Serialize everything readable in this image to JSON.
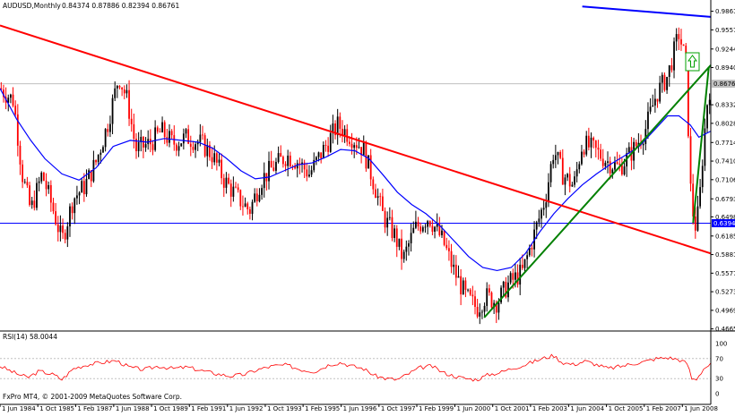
{
  "header": {
    "symbol": "AUDUSD,Monthly",
    "ohlc": "0.84374 0.87886 0.82394 0.86761"
  },
  "footer": {
    "copyright": "FxPro MT4, © 2001-2009 MetaQuotes Software Corp."
  },
  "colors": {
    "bull": "#000000",
    "bear": "#ff0000",
    "ma": "#0000ff",
    "trend_red": "#ff0000",
    "trend_green": "#008000",
    "trend_blue": "#0000ff",
    "horizontal": "#0000ff",
    "rsi": "#ff0000",
    "grid": "#c0c0c0",
    "arrow": "#00a000"
  },
  "chart_data": {
    "type": "candlestick",
    "price_axis": {
      "range": [
        0.466,
        0.987
      ],
      "ticks": [
        "0.98615",
        "0.95575",
        "0.92440",
        "0.89400",
        "0.83320",
        "0.80280",
        "0.77145",
        "0.74105",
        "0.71065",
        "0.67930",
        "0.64985",
        "0.61850",
        "0.58810",
        "0.55770",
        "0.52735",
        "0.49690",
        "0.46655"
      ],
      "current_price": 0.86761,
      "current_label": "0.86761",
      "level_label": "0.63940"
    },
    "time_axis": {
      "range": [
        1984.42,
        2009.42
      ],
      "labels": [
        {
          "t": 1984.42,
          "text": "1 Jun 1984"
        },
        {
          "t": 1985.75,
          "text": "1 Oct 1985"
        },
        {
          "t": 1987.08,
          "text": "1 Feb 1987"
        },
        {
          "t": 1988.42,
          "text": "1 Jun 1988"
        },
        {
          "t": 1989.75,
          "text": "1 Oct 1989"
        },
        {
          "t": 1991.08,
          "text": "1 Feb 1991"
        },
        {
          "t": 1992.42,
          "text": "1 Jun 1992"
        },
        {
          "t": 1993.75,
          "text": "1 Oct 1993"
        },
        {
          "t": 1995.08,
          "text": "1 Feb 1995"
        },
        {
          "t": 1996.42,
          "text": "1 Jun 1996"
        },
        {
          "t": 1997.75,
          "text": "1 Oct 1997"
        },
        {
          "t": 1999.08,
          "text": "1 Feb 1999"
        },
        {
          "t": 2000.42,
          "text": "1 Jun 2000"
        },
        {
          "t": 2001.75,
          "text": "1 Oct 2001"
        },
        {
          "t": 2003.08,
          "text": "1 Feb 2003"
        },
        {
          "t": 2004.42,
          "text": "1 Jun 2004"
        },
        {
          "t": 2005.75,
          "text": "1 Oct 2005"
        },
        {
          "t": 2007.08,
          "text": "1 Feb 2007"
        },
        {
          "t": 2008.42,
          "text": "1 Jun 2008"
        }
      ]
    },
    "close_path": [
      [
        1984.42,
        0.86
      ],
      [
        1984.9,
        0.84
      ],
      [
        1985.2,
        0.72
      ],
      [
        1985.5,
        0.66
      ],
      [
        1985.9,
        0.72
      ],
      [
        1986.3,
        0.66
      ],
      [
        1986.6,
        0.61
      ],
      [
        1987.0,
        0.68
      ],
      [
        1987.4,
        0.7
      ],
      [
        1987.8,
        0.74
      ],
      [
        1988.2,
        0.8
      ],
      [
        1988.6,
        0.88
      ],
      [
        1988.9,
        0.84
      ],
      [
        1989.2,
        0.76
      ],
      [
        1989.7,
        0.77
      ],
      [
        1990.1,
        0.79
      ],
      [
        1990.5,
        0.77
      ],
      [
        1991.0,
        0.78
      ],
      [
        1991.5,
        0.77
      ],
      [
        1991.9,
        0.75
      ],
      [
        1992.3,
        0.71
      ],
      [
        1992.8,
        0.68
      ],
      [
        1993.2,
        0.66
      ],
      [
        1993.6,
        0.71
      ],
      [
        1994.0,
        0.73
      ],
      [
        1994.5,
        0.75
      ],
      [
        1994.9,
        0.74
      ],
      [
        1995.3,
        0.72
      ],
      [
        1995.8,
        0.76
      ],
      [
        1996.3,
        0.8
      ],
      [
        1996.8,
        0.78
      ],
      [
        1997.2,
        0.76
      ],
      [
        1997.6,
        0.7
      ],
      [
        1997.9,
        0.65
      ],
      [
        1998.3,
        0.62
      ],
      [
        1998.6,
        0.58
      ],
      [
        1999.0,
        0.63
      ],
      [
        1999.5,
        0.65
      ],
      [
        2000.0,
        0.61
      ],
      [
        2000.4,
        0.56
      ],
      [
        2000.8,
        0.52
      ],
      [
        2001.2,
        0.5
      ],
      [
        2001.5,
        0.52
      ],
      [
        2001.9,
        0.51
      ],
      [
        2002.3,
        0.54
      ],
      [
        2002.8,
        0.56
      ],
      [
        2003.2,
        0.62
      ],
      [
        2003.6,
        0.68
      ],
      [
        2003.9,
        0.76
      ],
      [
        2004.2,
        0.72
      ],
      [
        2004.6,
        0.7
      ],
      [
        2004.9,
        0.77
      ],
      [
        2005.3,
        0.76
      ],
      [
        2005.8,
        0.74
      ],
      [
        2006.2,
        0.73
      ],
      [
        2006.7,
        0.76
      ],
      [
        2007.1,
        0.79
      ],
      [
        2007.5,
        0.85
      ],
      [
        2007.9,
        0.88
      ],
      [
        2008.3,
        0.95
      ],
      [
        2008.55,
        0.9
      ],
      [
        2008.7,
        0.7
      ],
      [
        2008.85,
        0.63
      ],
      [
        2009.0,
        0.66
      ],
      [
        2009.15,
        0.76
      ],
      [
        2009.3,
        0.84
      ],
      [
        2009.42,
        0.868
      ]
    ],
    "moving_average": [
      [
        1984.42,
        0.86
      ],
      [
        1985.0,
        0.81
      ],
      [
        1985.5,
        0.775
      ],
      [
        1986.0,
        0.745
      ],
      [
        1986.6,
        0.72
      ],
      [
        1987.2,
        0.71
      ],
      [
        1987.8,
        0.73
      ],
      [
        1988.4,
        0.765
      ],
      [
        1989.0,
        0.775
      ],
      [
        1989.6,
        0.772
      ],
      [
        1990.2,
        0.778
      ],
      [
        1990.8,
        0.775
      ],
      [
        1991.4,
        0.772
      ],
      [
        1991.9,
        0.762
      ],
      [
        1992.4,
        0.745
      ],
      [
        1992.9,
        0.725
      ],
      [
        1993.4,
        0.712
      ],
      [
        1993.9,
        0.715
      ],
      [
        1994.4,
        0.725
      ],
      [
        1994.9,
        0.735
      ],
      [
        1995.4,
        0.738
      ],
      [
        1995.9,
        0.748
      ],
      [
        1996.4,
        0.76
      ],
      [
        1996.9,
        0.758
      ],
      [
        1997.4,
        0.745
      ],
      [
        1997.9,
        0.718
      ],
      [
        1998.4,
        0.69
      ],
      [
        1998.9,
        0.67
      ],
      [
        1999.4,
        0.655
      ],
      [
        1999.9,
        0.635
      ],
      [
        2000.4,
        0.61
      ],
      [
        2000.9,
        0.585
      ],
      [
        2001.4,
        0.567
      ],
      [
        2001.9,
        0.562
      ],
      [
        2002.4,
        0.567
      ],
      [
        2002.9,
        0.59
      ],
      [
        2003.4,
        0.625
      ],
      [
        2003.9,
        0.655
      ],
      [
        2004.4,
        0.68
      ],
      [
        2004.9,
        0.702
      ],
      [
        2005.4,
        0.72
      ],
      [
        2005.9,
        0.736
      ],
      [
        2006.4,
        0.75
      ],
      [
        2006.9,
        0.765
      ],
      [
        2007.4,
        0.79
      ],
      [
        2007.9,
        0.815
      ],
      [
        2008.3,
        0.815
      ],
      [
        2008.7,
        0.8
      ],
      [
        2009.0,
        0.78
      ],
      [
        2009.42,
        0.79
      ]
    ],
    "trendlines": [
      {
        "color": "trend_red",
        "from": [
          1984.42,
          0.963
        ],
        "to": [
          2009.42,
          0.59
        ]
      },
      {
        "color": "trend_blue",
        "from": [
          2004.9,
          0.994
        ],
        "to": [
          2009.42,
          0.977
        ]
      },
      {
        "color": "trend_green",
        "from": [
          2001.45,
          0.485
        ],
        "to": [
          2009.42,
          0.898
        ]
      },
      {
        "color": "trend_green",
        "from": [
          2008.8,
          0.64
        ],
        "to": [
          2009.35,
          0.895
        ]
      }
    ],
    "horizontal_level": 0.6394,
    "rsi": {
      "label": "RSI(14) 58.0044",
      "range": [
        0,
        100
      ],
      "ticks": [
        "100",
        "70",
        "30",
        "0"
      ],
      "levels": [
        70,
        30
      ],
      "path": [
        [
          1984.42,
          55
        ],
        [
          1985.0,
          40
        ],
        [
          1985.4,
          32
        ],
        [
          1985.8,
          45
        ],
        [
          1986.3,
          38
        ],
        [
          1986.6,
          28
        ],
        [
          1987.0,
          50
        ],
        [
          1987.5,
          58
        ],
        [
          1988.0,
          62
        ],
        [
          1988.5,
          66
        ],
        [
          1989.0,
          52
        ],
        [
          1989.5,
          48
        ],
        [
          1990.0,
          55
        ],
        [
          1990.5,
          50
        ],
        [
          1991.0,
          53
        ],
        [
          1991.5,
          46
        ],
        [
          1992.0,
          40
        ],
        [
          1992.5,
          35
        ],
        [
          1993.0,
          38
        ],
        [
          1993.5,
          48
        ],
        [
          1994.0,
          55
        ],
        [
          1994.5,
          57
        ],
        [
          1995.0,
          48
        ],
        [
          1995.5,
          44
        ],
        [
          1996.0,
          58
        ],
        [
          1996.4,
          62
        ],
        [
          1996.8,
          55
        ],
        [
          1997.2,
          50
        ],
        [
          1997.6,
          36
        ],
        [
          1998.0,
          30
        ],
        [
          1998.4,
          28
        ],
        [
          1998.8,
          40
        ],
        [
          1999.2,
          52
        ],
        [
          1999.6,
          55
        ],
        [
          2000.0,
          42
        ],
        [
          2000.4,
          35
        ],
        [
          2000.8,
          30
        ],
        [
          2001.2,
          28
        ],
        [
          2001.6,
          38
        ],
        [
          2002.0,
          42
        ],
        [
          2002.4,
          50
        ],
        [
          2002.8,
          56
        ],
        [
          2003.2,
          64
        ],
        [
          2003.6,
          72
        ],
        [
          2003.9,
          76
        ],
        [
          2004.2,
          62
        ],
        [
          2004.6,
          58
        ],
        [
          2005.0,
          65
        ],
        [
          2005.4,
          58
        ],
        [
          2005.8,
          50
        ],
        [
          2006.2,
          54
        ],
        [
          2006.7,
          60
        ],
        [
          2007.1,
          64
        ],
        [
          2007.5,
          70
        ],
        [
          2007.9,
          72
        ],
        [
          2008.3,
          68
        ],
        [
          2008.6,
          60
        ],
        [
          2008.75,
          30
        ],
        [
          2008.9,
          28
        ],
        [
          2009.05,
          40
        ],
        [
          2009.2,
          52
        ],
        [
          2009.42,
          58
        ]
      ]
    }
  }
}
